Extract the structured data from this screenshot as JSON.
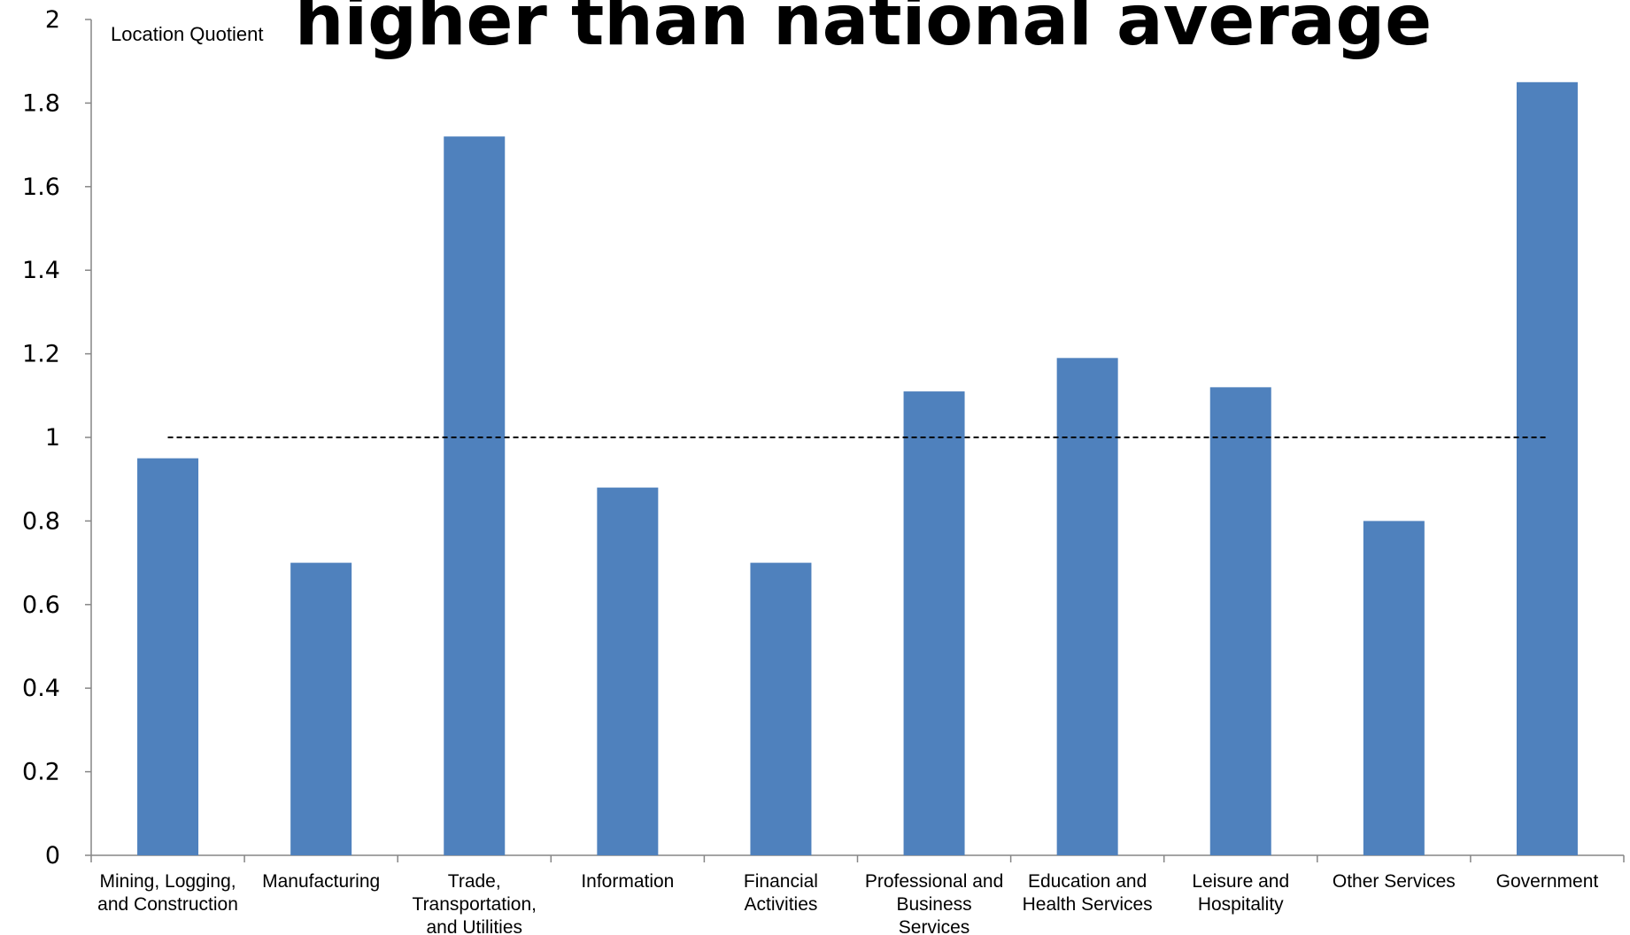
{
  "chart_data": {
    "type": "bar",
    "title": "higher than national average",
    "xlabel": "",
    "ylabel": "Location Quotient",
    "ylim": [
      0,
      2
    ],
    "yticks": [
      "0",
      "0.2",
      "0.4",
      "0.6",
      "0.8",
      "1",
      "1.2",
      "1.4",
      "1.6",
      "1.8",
      "2"
    ],
    "grid": false,
    "legend": "none",
    "categories": [
      [
        "Mining, Logging,",
        "and Construction"
      ],
      [
        "Manufacturing"
      ],
      [
        "Trade,",
        "Transportation,",
        "and Utilities"
      ],
      [
        "Information"
      ],
      [
        "Financial",
        "Activities"
      ],
      [
        "Professional and",
        "Business",
        "Services"
      ],
      [
        "Education and",
        "Health Services"
      ],
      [
        "Leisure and",
        "Hospitality"
      ],
      [
        "Other Services"
      ],
      [
        "Government"
      ]
    ],
    "values": [
      0.95,
      0.7,
      1.72,
      0.88,
      0.7,
      1.11,
      1.19,
      1.12,
      0.8,
      1.85
    ],
    "reference_line": 1.0,
    "bar_color": "#4F81BD",
    "reference_line_color": "#000000"
  }
}
